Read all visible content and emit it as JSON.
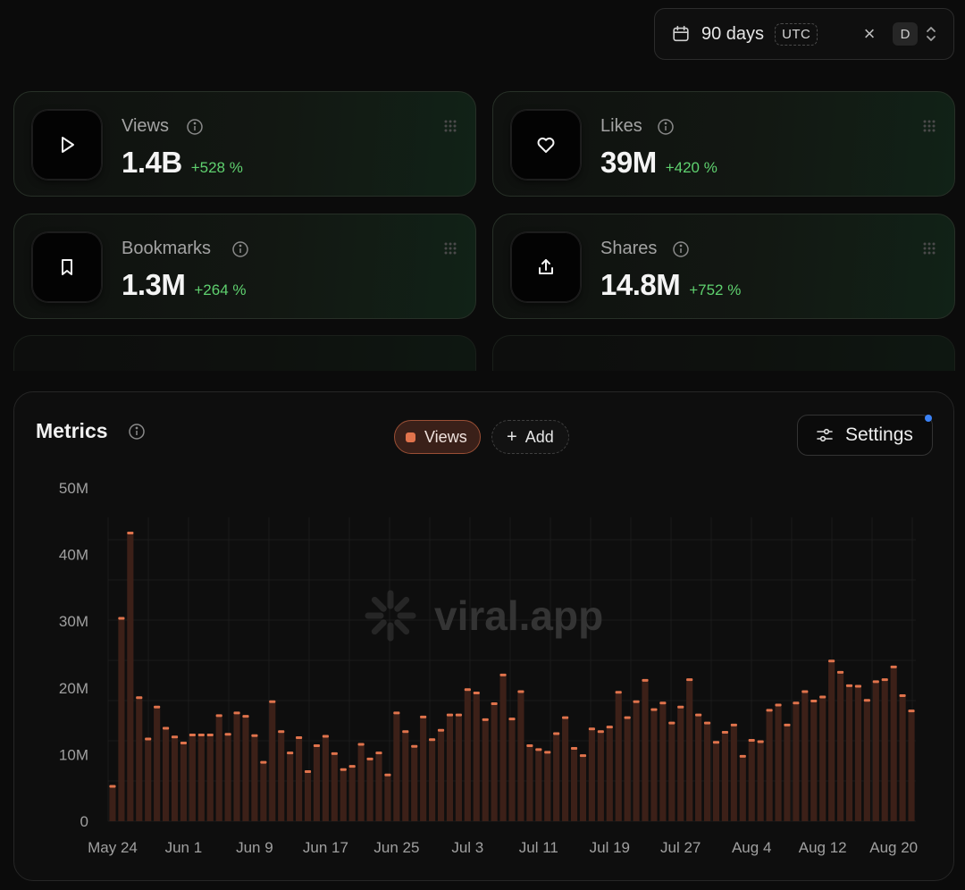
{
  "date_range": {
    "label": "90 days",
    "timezone": "UTC",
    "granularity": "D",
    "icon": "calendar-icon"
  },
  "stats": [
    {
      "label": "Views",
      "value": "1.4B",
      "delta": "+528 %",
      "icon": "play-icon"
    },
    {
      "label": "Likes",
      "value": "39M",
      "delta": "+420 %",
      "icon": "heart-icon"
    },
    {
      "label": "Bookmarks",
      "value": "1.3M",
      "delta": "+264 %",
      "icon": "bookmark-icon"
    },
    {
      "label": "Shares",
      "value": "14.8M",
      "delta": "+752 %",
      "icon": "share-icon"
    }
  ],
  "metrics": {
    "title": "Metrics",
    "chip_views": "Views",
    "chip_add": "Add",
    "settings_label": "Settings",
    "watermark": "viral.app"
  },
  "colors": {
    "accent": "#e0734c",
    "bar_fill": "#3c2018",
    "positive": "#5fd16f",
    "notification": "#3b82f6"
  },
  "chart_data": {
    "type": "bar",
    "series": [
      {
        "name": "Views"
      }
    ],
    "ylim": [
      0,
      50000000
    ],
    "yticks": [
      "0",
      "10M",
      "20M",
      "30M",
      "40M",
      "50M"
    ],
    "xticks": [
      "May 24",
      "Jun 1",
      "Jun 9",
      "Jun 17",
      "Jun 25",
      "Jul 3",
      "Jul 11",
      "Jul 19",
      "Jul 27",
      "Aug 4",
      "Aug 12",
      "Aug 20"
    ],
    "x_start": "May 24",
    "values_millions": [
      5.3,
      30.5,
      43.3,
      18.6,
      12.4,
      17.2,
      14.0,
      12.7,
      11.8,
      13.0,
      13.0,
      13.0,
      15.9,
      13.1,
      16.3,
      15.8,
      12.9,
      8.9,
      18.0,
      13.5,
      10.3,
      12.6,
      7.5,
      11.4,
      12.8,
      10.2,
      7.8,
      8.3,
      11.6,
      9.4,
      10.3,
      7.0,
      16.3,
      13.5,
      11.3,
      15.7,
      12.3,
      13.7,
      16.0,
      16.0,
      19.8,
      19.3,
      15.3,
      17.7,
      22.0,
      15.4,
      19.5,
      11.4,
      10.8,
      10.4,
      13.2,
      15.6,
      11.0,
      9.9,
      13.9,
      13.5,
      14.2,
      19.4,
      15.6,
      18.0,
      21.2,
      16.8,
      17.8,
      14.8,
      17.2,
      21.3,
      16.0,
      14.8,
      11.9,
      13.4,
      14.5,
      9.8,
      12.2,
      12.0,
      16.7,
      17.5,
      14.5,
      17.8,
      19.5,
      18.1,
      18.7,
      24.1,
      22.4,
      20.4,
      20.3,
      18.2,
      21.0,
      21.3,
      23.2,
      18.9,
      16.6
    ]
  }
}
